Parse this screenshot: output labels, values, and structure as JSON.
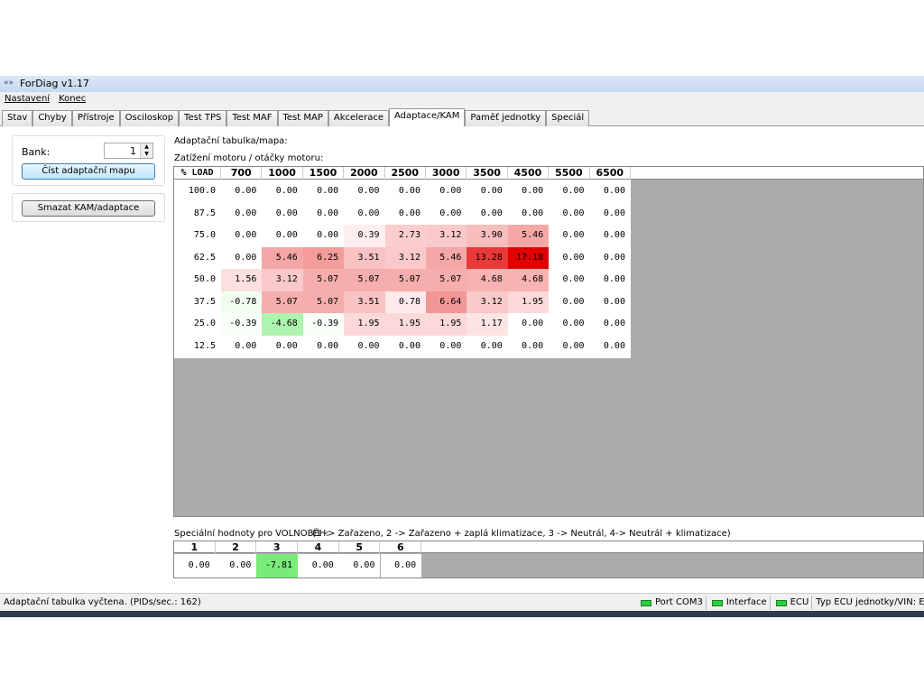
{
  "window": {
    "title": "ForDiag v1.17"
  },
  "menu": [
    "Nastavení",
    "Konec"
  ],
  "tabs": [
    "Stav",
    "Chyby",
    "Přístroje",
    "Osciloskop",
    "Test TPS",
    "Test MAF",
    "Test MAP",
    "Akcelerace",
    "Adaptace/KAM",
    "Paměť jednotky",
    "Speciál"
  ],
  "left_panel": {
    "bank_label": "Bank:",
    "bank_value": "1",
    "read_button": "Číst adaptační mapu",
    "clear_button": "Smazat KAM/adaptace"
  },
  "table": {
    "title": "Adaptační tabulka/mapa:",
    "subtitle": "Zatížení motoru / otáčky motoru:",
    "corner": "% LOAD",
    "columns": [
      700,
      1000,
      1500,
      2000,
      2500,
      3000,
      3500,
      4500,
      5500,
      6500
    ],
    "rows": [
      {
        "load": "100.0",
        "values": [
          "0.00",
          "0.00",
          "0.00",
          "0.00",
          "0.00",
          "0.00",
          "0.00",
          "0.00",
          "0.00",
          "0.00"
        ]
      },
      {
        "load": "87.5",
        "values": [
          "0.00",
          "0.00",
          "0.00",
          "0.00",
          "0.00",
          "0.00",
          "0.00",
          "0.00",
          "0.00",
          "0.00"
        ]
      },
      {
        "load": "75.0",
        "values": [
          "0.00",
          "0.00",
          "0.00",
          "0.39",
          "2.73",
          "3.12",
          "3.90",
          "5.46",
          "0.00",
          "0.00"
        ]
      },
      {
        "load": "62.5",
        "values": [
          "0.00",
          "5.46",
          "6.25",
          "3.51",
          "3.12",
          "5.46",
          "13.28",
          "17.18",
          "0.00",
          "0.00"
        ]
      },
      {
        "load": "50.0",
        "values": [
          "1.56",
          "3.12",
          "5.07",
          "5.07",
          "5.07",
          "5.07",
          "4.68",
          "4.68",
          "0.00",
          "0.00"
        ]
      },
      {
        "load": "37.5",
        "values": [
          "-0.78",
          "5.07",
          "5.07",
          "3.51",
          "0.78",
          "6.64",
          "3.12",
          "1.95",
          "0.00",
          "0.00"
        ]
      },
      {
        "load": "25.0",
        "values": [
          "-0.39",
          "-4.68",
          "-0.39",
          "1.95",
          "1.95",
          "1.95",
          "1.17",
          "0.00",
          "0.00",
          "0.00"
        ]
      },
      {
        "load": "12.5",
        "values": [
          "0.00",
          "0.00",
          "0.00",
          "0.00",
          "0.00",
          "0.00",
          "0.00",
          "0.00",
          "0.00",
          "0.00"
        ]
      }
    ]
  },
  "idle": {
    "label": "Speciální hodnoty pro VOLNOBĚH:",
    "legend": "(1 -> Zařazeno, 2 -> Zařazeno + zaplá klimatizace, 3 -> Neutrál, 4-> Neutrál + klimatizace)",
    "columns": [
      1,
      2,
      3,
      4,
      5,
      6
    ],
    "values": [
      "0.00",
      "0.00",
      "-7.81",
      "0.00",
      "0.00",
      "0.00"
    ]
  },
  "status_bar": {
    "message": "Adaptační tabulka vyčtena. (PIDs/sec.: 162)",
    "indicators": [
      "Port COM3",
      "Interface",
      "ECU"
    ],
    "ecu_type": "Typ ECU jednotky/VIN: EEC-IV"
  }
}
